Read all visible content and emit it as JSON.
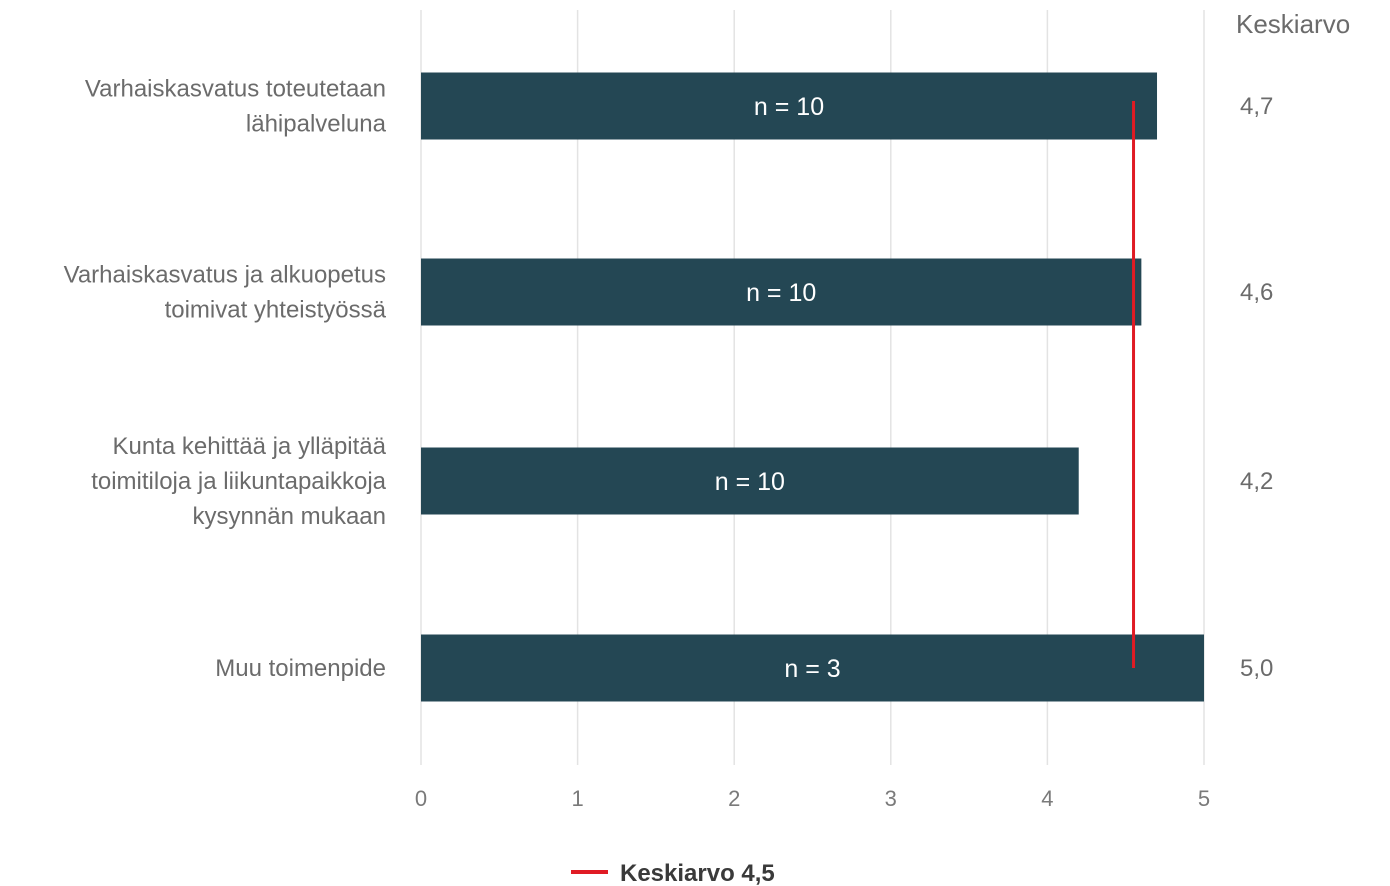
{
  "chart_data": {
    "type": "bar",
    "orientation": "horizontal",
    "categories": [
      [
        "Varhaiskasvatus toteutetaan",
        "lähipalveluna"
      ],
      [
        "Varhaiskasvatus ja alkuopetus",
        "toimivat yhteistyössä"
      ],
      [
        "Kunta kehittää ja ylläpitää",
        "toimitiloja ja liikuntapaikkoja",
        "kysynnän mukaan"
      ],
      [
        "Muu toimenpide"
      ]
    ],
    "values": [
      4.7,
      4.6,
      4.2,
      5.0
    ],
    "bar_labels": [
      "n = 10",
      "n = 10",
      "n = 10",
      "n = 3"
    ],
    "average_column_header": "Keskiarvo",
    "average_labels": [
      "4,7",
      "4,6",
      "4,2",
      "5,0"
    ],
    "reference_line": {
      "value": 4.55,
      "label": "Keskiarvo 4,5"
    },
    "xlim": [
      0,
      5
    ],
    "xticks": [
      "0",
      "1",
      "2",
      "3",
      "4",
      "5"
    ],
    "grid": true,
    "legend_position": "bottom-center",
    "colors": {
      "bar": "#244754",
      "reference_line": "#e01b24",
      "grid": "#e3e3e3"
    }
  }
}
